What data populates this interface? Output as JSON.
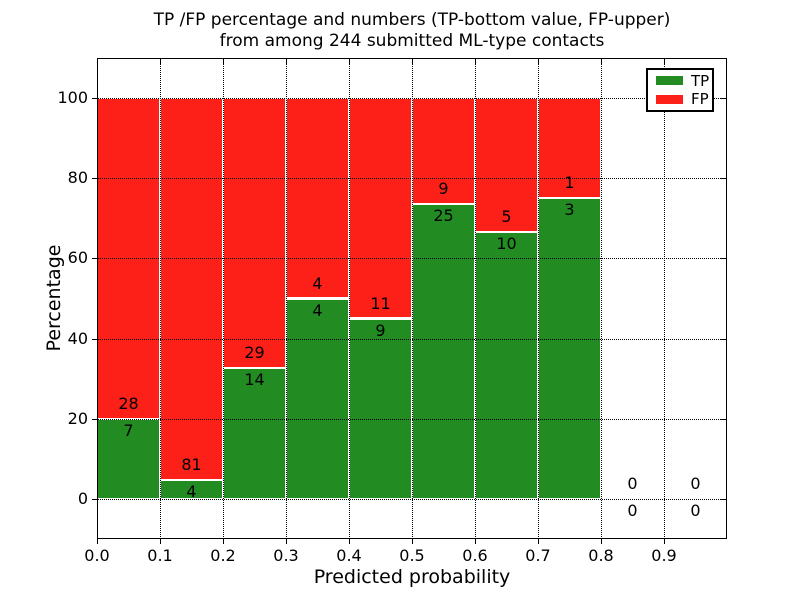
{
  "chart_data": {
    "type": "bar",
    "stacked": true,
    "title_lines": [
      "TP /FP percentage and numbers (TP-bottom value, FP-upper)",
      "from among 244 submitted ML-type contacts"
    ],
    "xlabel": "Predicted probability",
    "ylabel": "Percentage",
    "xlim": [
      0.0,
      1.0
    ],
    "ylim": [
      -10,
      110
    ],
    "grid": true,
    "legend_position": "upper right",
    "total_contacts": 244,
    "x_tick_values": [
      0.0,
      0.1,
      0.2,
      0.3,
      0.4,
      0.5,
      0.6,
      0.7,
      0.8,
      0.9
    ],
    "x_tick_labels": [
      "0.0",
      "0.1",
      "0.2",
      "0.3",
      "0.4",
      "0.5",
      "0.6",
      "0.7",
      "0.8",
      "0.9"
    ],
    "y_tick_values": [
      0,
      20,
      40,
      60,
      80,
      100
    ],
    "y_tick_labels": [
      "0",
      "20",
      "40",
      "60",
      "80",
      "100"
    ],
    "series": [
      {
        "name": "TP",
        "color": "#228B22"
      },
      {
        "name": "FP",
        "color": "#FC2018"
      }
    ],
    "bar_edge_color": "#ffffff",
    "bins": [
      {
        "range": [
          0.0,
          0.1
        ],
        "tp_count": 7,
        "fp_count": 28,
        "tp_pct": 20.0,
        "fp_pct": 80.0
      },
      {
        "range": [
          0.1,
          0.2
        ],
        "tp_count": 4,
        "fp_count": 81,
        "tp_pct": 4.71,
        "fp_pct": 95.29
      },
      {
        "range": [
          0.2,
          0.3
        ],
        "tp_count": 14,
        "fp_count": 29,
        "tp_pct": 32.56,
        "fp_pct": 67.44
      },
      {
        "range": [
          0.3,
          0.4
        ],
        "tp_count": 4,
        "fp_count": 4,
        "tp_pct": 50.0,
        "fp_pct": 50.0
      },
      {
        "range": [
          0.4,
          0.5
        ],
        "tp_count": 9,
        "fp_count": 11,
        "tp_pct": 45.0,
        "fp_pct": 55.0
      },
      {
        "range": [
          0.5,
          0.6
        ],
        "tp_count": 25,
        "fp_count": 9,
        "tp_pct": 73.53,
        "fp_pct": 26.47
      },
      {
        "range": [
          0.6,
          0.7
        ],
        "tp_count": 10,
        "fp_count": 5,
        "tp_pct": 66.67,
        "fp_pct": 33.33
      },
      {
        "range": [
          0.7,
          0.8
        ],
        "tp_count": 3,
        "fp_count": 1,
        "tp_pct": 75.0,
        "fp_pct": 25.0
      },
      {
        "range": [
          0.8,
          0.9
        ],
        "tp_count": 0,
        "fp_count": 0,
        "tp_pct": 0.0,
        "fp_pct": 0.0
      },
      {
        "range": [
          0.9,
          1.0
        ],
        "tp_count": 0,
        "fp_count": 0,
        "tp_pct": 0.0,
        "fp_pct": 0.0
      }
    ]
  }
}
